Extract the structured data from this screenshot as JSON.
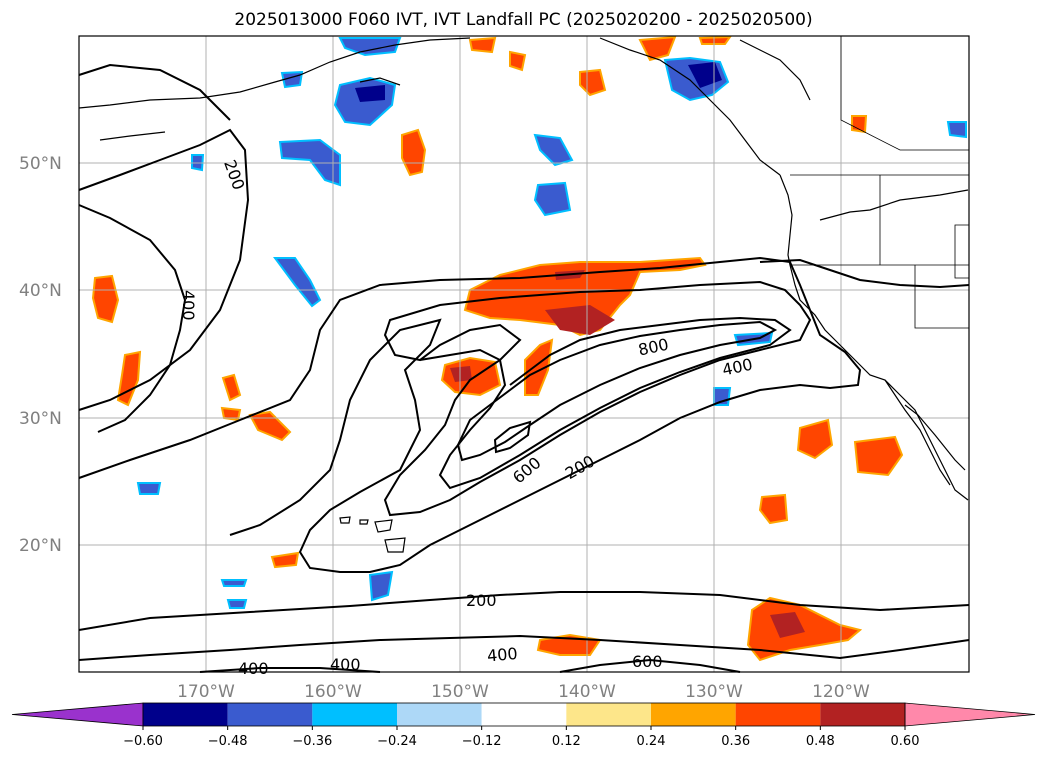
{
  "title": "2025013000 F060 IVT, IVT Landfall PC (2025020200 - 2025020500)",
  "latitude_labels": [
    "50°N",
    "40°N",
    "30°N",
    "20°N"
  ],
  "longitude_labels": [
    "170°W",
    "160°W",
    "150°W",
    "140°W",
    "130°W",
    "120°W"
  ],
  "contour_labels": [
    "200",
    "400",
    "800",
    "400",
    "600",
    "200",
    "200",
    "400",
    "400",
    "400",
    "600"
  ],
  "colorbar": {
    "tick_labels": [
      "−0.60",
      "−0.48",
      "−0.36",
      "−0.24",
      "−0.12",
      "0.12",
      "0.24",
      "0.36",
      "0.48",
      "0.60"
    ],
    "colors": [
      "#9a32cd",
      "#00008b",
      "#3a5bcf",
      "#00bfff",
      "#add8f7",
      "#ffffff",
      "#fde68a",
      "#ffa500",
      "#ff4500",
      "#b22222",
      "#ff88aa"
    ]
  },
  "colors": {
    "contour": "#000000",
    "grid": "#b0b0b0",
    "coast": "#000000"
  }
}
